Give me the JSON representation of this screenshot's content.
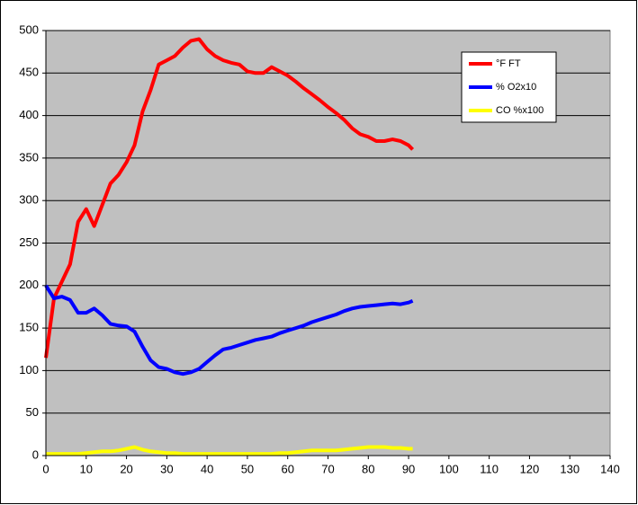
{
  "chart_data": {
    "type": "line",
    "x": [
      0,
      2,
      4,
      6,
      8,
      10,
      12,
      14,
      16,
      18,
      20,
      22,
      24,
      26,
      28,
      30,
      32,
      34,
      36,
      38,
      40,
      42,
      44,
      46,
      48,
      50,
      52,
      54,
      56,
      58,
      60,
      62,
      64,
      66,
      68,
      70,
      72,
      74,
      76,
      78,
      80,
      82,
      84,
      86,
      88,
      90,
      91
    ],
    "series": [
      {
        "name": "°F FT",
        "color": "#ff0000",
        "values": [
          115,
          185,
          205,
          225,
          275,
          290,
          270,
          295,
          320,
          330,
          345,
          365,
          405,
          430,
          460,
          465,
          470,
          480,
          488,
          490,
          478,
          470,
          465,
          462,
          460,
          452,
          450,
          450,
          457,
          452,
          447,
          440,
          432,
          425,
          418,
          410,
          403,
          395,
          385,
          378,
          375,
          370,
          370,
          372,
          370,
          365,
          360
        ]
      },
      {
        "name": "% O2x10",
        "color": "#0000ff",
        "values": [
          200,
          185,
          187,
          183,
          168,
          168,
          173,
          165,
          155,
          153,
          152,
          146,
          128,
          112,
          104,
          102,
          98,
          96,
          98,
          102,
          110,
          118,
          125,
          127,
          130,
          133,
          136,
          138,
          140,
          144,
          147,
          150,
          153,
          157,
          160,
          163,
          166,
          170,
          173,
          175,
          176,
          177,
          178,
          179,
          178,
          180,
          182
        ]
      },
      {
        "name": "CO %x100",
        "color": "#ffff00",
        "values": [
          2,
          2,
          2,
          2,
          2,
          3,
          4,
          5,
          5,
          6,
          8,
          10,
          7,
          5,
          4,
          3,
          3,
          2,
          2,
          2,
          2,
          2,
          2,
          2,
          2,
          2,
          2,
          2,
          2,
          3,
          3,
          4,
          5,
          6,
          6,
          6,
          6,
          7,
          8,
          9,
          10,
          10,
          10,
          9,
          9,
          8,
          8
        ]
      }
    ],
    "xlim": [
      0,
      140
    ],
    "xticks": [
      0,
      10,
      20,
      30,
      40,
      50,
      60,
      70,
      80,
      90,
      100,
      110,
      120,
      130,
      140
    ],
    "ylim": [
      0,
      500
    ],
    "yticks": [
      0,
      50,
      100,
      150,
      200,
      250,
      300,
      350,
      400,
      450,
      500
    ],
    "grid": true,
    "legend": "top-right"
  }
}
